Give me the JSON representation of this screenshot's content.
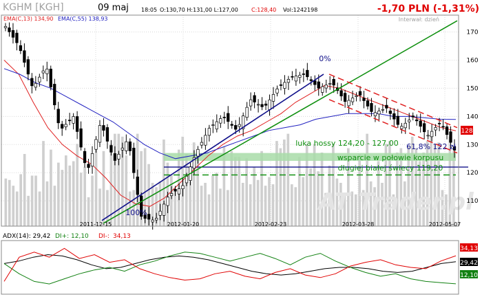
{
  "header": {
    "ticker": "KGHM [KGH]",
    "date": "09 maj",
    "time": "18:05",
    "ohlc": "O:130,70  H:131,00  L:127,00",
    "close": "C:128,40",
    "volume": "Vol:1242198",
    "change": "-1,70 PLN (-1,31%)",
    "interval": "Interwał: dzień",
    "ema13": "EMA(C,13) 134,90",
    "ema55": "EMA(C,55) 138,93"
  },
  "colors": {
    "up": "#ffffff",
    "down": "#000000",
    "ema13": "#e02020",
    "ema55": "#2020c0",
    "trend_blue": "#10108a",
    "trend_green": "#109010",
    "channel": "#e02020",
    "zone": "#a8dca8",
    "change_red": "#e00000",
    "adx": "#000000",
    "di_plus": "#108010",
    "di_minus": "#e00000"
  },
  "watermark": "AT Trader.pl",
  "chart_data": [
    {
      "type": "candlestick",
      "title": "",
      "ylim": [
        101,
        176
      ],
      "yticks": [
        110,
        120,
        130,
        140,
        150,
        160,
        170
      ],
      "xticks": [
        "2011-12-15",
        "2012-01-20",
        "2012-02-23",
        "2012-03-28",
        "2012-05-07"
      ],
      "last_price_label": "128",
      "pivots": [
        172,
        165,
        150,
        158,
        135,
        140,
        120,
        138,
        124,
        132,
        104,
        103,
        112,
        115,
        127,
        136,
        140,
        135,
        146,
        143,
        150,
        154,
        155,
        150,
        152,
        145,
        148,
        141,
        143,
        136,
        140,
        133,
        138,
        128
      ],
      "series": [
        {
          "name": "EMA(C,13)",
          "values_approx": [
            160,
            155,
            145,
            136,
            130,
            126,
            123,
            118,
            112,
            109,
            108,
            111,
            116,
            121,
            126,
            130,
            133,
            135,
            138,
            141,
            145,
            148,
            151,
            150,
            148,
            146,
            144,
            142,
            140,
            138,
            136,
            134.9
          ]
        },
        {
          "name": "EMA(C,55)",
          "values_approx": [
            157,
            155,
            152,
            150,
            147,
            144,
            141,
            138,
            134,
            130,
            127,
            125,
            126,
            127,
            129,
            131,
            133,
            135,
            136,
            137,
            139,
            140,
            141,
            141,
            141,
            140,
            140,
            139.5,
            139,
            138.93
          ]
        }
      ],
      "volume_bars": [
        33,
        32,
        28,
        24,
        36,
        50,
        21,
        35,
        35,
        24,
        59,
        31,
        53,
        28,
        44,
        39,
        49,
        42,
        45,
        57,
        37,
        41,
        20,
        35,
        57,
        26,
        52,
        25,
        57,
        64,
        64,
        62,
        49,
        24,
        25,
        64,
        52,
        54,
        43,
        30,
        27,
        31,
        60,
        44,
        36,
        26,
        53,
        62,
        50,
        31,
        58,
        52,
        28,
        30,
        22,
        35,
        37,
        26,
        55,
        25,
        52,
        48,
        48,
        30,
        47,
        29,
        41,
        32,
        52,
        28,
        34,
        29,
        59,
        54,
        60,
        64,
        29,
        27,
        48,
        34,
        57,
        40,
        57,
        38,
        51,
        23,
        42,
        57,
        33,
        30,
        23,
        54,
        24,
        22,
        50,
        25,
        64,
        31,
        27,
        45,
        30,
        57,
        59,
        22,
        51,
        54,
        31,
        55,
        62,
        54,
        45,
        51,
        59,
        63,
        57,
        58,
        25,
        22,
        62,
        52
      ],
      "annotations": [
        {
          "text": "0%",
          "at": "trend top"
        },
        {
          "text": "100%",
          "at": "trend bottom"
        },
        {
          "text": "luka hossy 124,20 - 127,00"
        },
        {
          "text": "61,8%  122 zł"
        },
        {
          "text": "wsparcie w połowie korpusu"
        },
        {
          "text": "długiej białej świecy 119,20"
        }
      ],
      "levels": {
        "gap_zone": [
          124.2,
          127.0
        ],
        "fib_618": 122,
        "support": 119.2,
        "trend_high": 155,
        "trend_low": 103
      }
    },
    {
      "type": "line",
      "title": "ADX(14): 29,42",
      "series": [
        {
          "name": "ADX(14)",
          "last": "29,42",
          "values_approx": [
            28,
            30,
            33,
            35,
            34,
            31,
            27,
            24,
            25,
            28,
            31,
            33,
            34,
            33,
            31,
            28,
            25,
            22,
            20,
            19,
            20,
            22,
            24,
            25,
            25,
            24,
            22,
            21,
            22,
            25,
            28,
            29.42
          ]
        },
        {
          "name": "DI+",
          "last": "12,10",
          "values_approx": [
            28,
            20,
            14,
            12,
            16,
            20,
            23,
            25,
            22,
            27,
            30,
            34,
            37,
            36,
            33,
            30,
            33,
            36,
            32,
            27,
            33,
            36,
            30,
            25,
            21,
            18,
            20,
            16,
            14,
            13,
            12.1
          ]
        },
        {
          "name": "DI-",
          "last": "34,13",
          "values_approx": [
            14,
            33,
            37,
            33,
            40,
            32,
            35,
            29,
            31,
            24,
            20,
            17,
            15,
            16,
            20,
            22,
            18,
            16,
            21,
            24,
            19,
            17,
            20,
            26,
            29,
            31,
            27,
            25,
            24,
            30,
            34.13
          ]
        }
      ]
    }
  ]
}
